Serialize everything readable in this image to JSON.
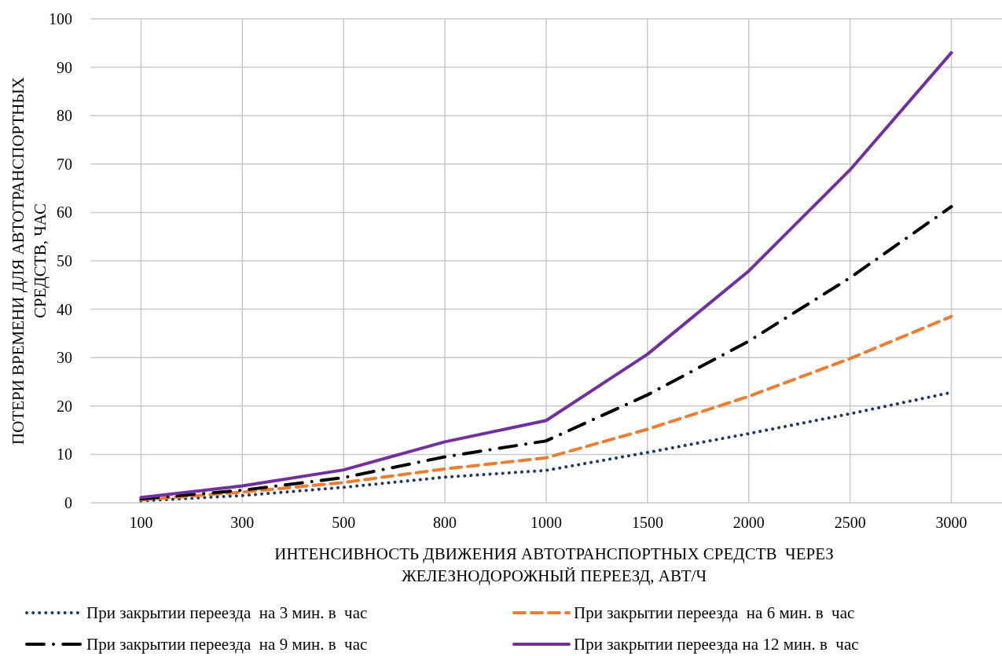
{
  "chart_data": {
    "type": "line",
    "xlabel": "ИНТЕНСИВНОСТЬ ДВИЖЕНИЯ АВТОТРАНСПОРТНЫХ СРЕДСТВ  ЧЕРЕЗ ЖЕЛЕЗНОДОРОЖНЫЙ ПЕРЕЕЗД, АВТ/Ч",
    "ylabel": "ПОТЕРИ ВРЕМЕНИ ДЛЯ АВТОТРАНСПОРТНЫХ СРЕДСТВ, ЧАС",
    "categories": [
      "100",
      "300",
      "500",
      "800",
      "1000",
      "1500",
      "2000",
      "2500",
      "3000"
    ],
    "series": [
      {
        "name": "При закрытии переезда  на 3 мин. в  час",
        "color": "#203864",
        "line_style": "dotted",
        "values": [
          0.4,
          1.5,
          3.2,
          5.3,
          6.7,
          10.4,
          14.3,
          18.4,
          22.8
        ]
      },
      {
        "name": "При закрытии переезда  на 6 мин. в  час",
        "color": "#ed7d31",
        "line_style": "dashed",
        "values": [
          0.6,
          2.2,
          4.2,
          7.0,
          9.3,
          15.2,
          22.0,
          29.8,
          38.5
        ]
      },
      {
        "name": "При закрытии переезда  на 9 мин. в  час",
        "color": "#000000",
        "line_style": "dashdot",
        "values": [
          0.8,
          2.6,
          5.2,
          9.5,
          12.8,
          22.3,
          33.4,
          46.5,
          61.2
        ]
      },
      {
        "name": "При закрытии переезда на 12 мин. в  час",
        "color": "#7030a0",
        "line_style": "solid",
        "values": [
          1.1,
          3.5,
          6.8,
          12.6,
          17.0,
          30.7,
          47.9,
          68.8,
          93.0
        ]
      }
    ],
    "ylim": [
      0,
      100
    ],
    "yticks": [
      0,
      10,
      20,
      30,
      40,
      50,
      60,
      70,
      80,
      90,
      100
    ],
    "grid": true,
    "legend": "bottom"
  }
}
